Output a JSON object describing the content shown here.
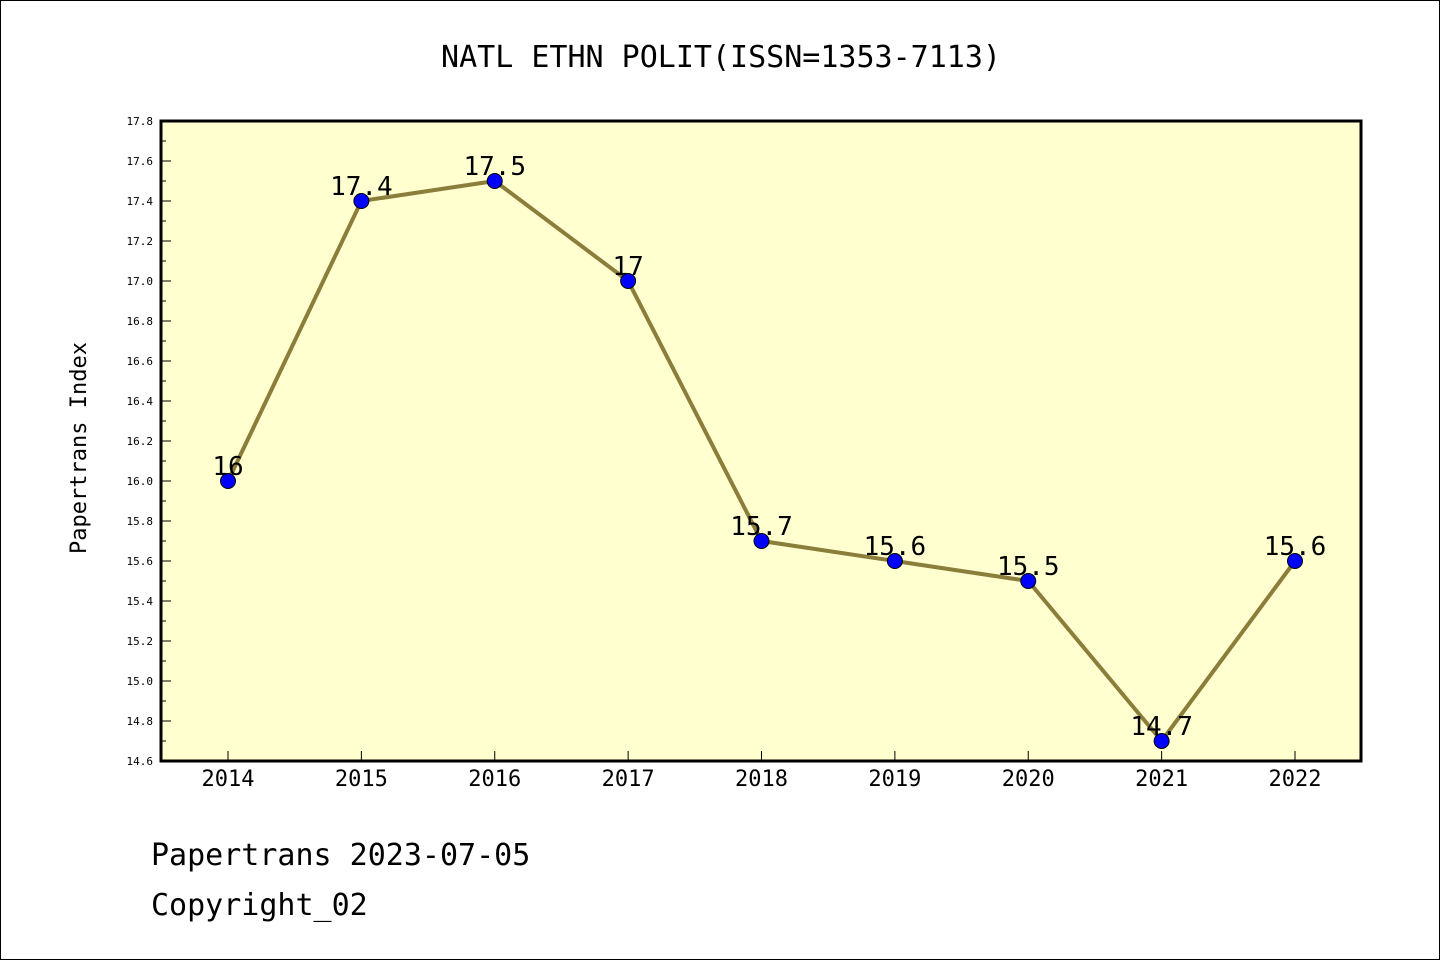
{
  "chart_data": {
    "type": "line",
    "title": "NATL ETHN POLIT(ISSN=1353-7113)",
    "xlabel": "",
    "ylabel": "Papertrans Index",
    "categories": [
      "2014",
      "2015",
      "2016",
      "2017",
      "2018",
      "2019",
      "2020",
      "2021",
      "2022"
    ],
    "series": [
      {
        "values": [
          16,
          17.4,
          17.5,
          17,
          15.7,
          15.6,
          15.5,
          14.7,
          15.6
        ],
        "data_labels": [
          "16",
          "17.4",
          "17.5",
          "17",
          "15.7",
          "15.6",
          "15.5",
          "14.7",
          "15.6"
        ]
      }
    ],
    "ylim": [
      14.6,
      17.8
    ],
    "yticks": [
      "14.6",
      "14.8",
      "15.0",
      "15.2",
      "15.4",
      "15.6",
      "15.8",
      "16.0",
      "16.2",
      "16.4",
      "16.6",
      "16.8",
      "17.0",
      "17.2",
      "17.4",
      "17.6",
      "17.8"
    ],
    "grid": false,
    "legend": "none"
  },
  "footer": {
    "line1": "Papertrans 2023-07-05",
    "line2": "Copyright_02"
  },
  "colors": {
    "plot_background": "#ffffd0",
    "line": "#8b7d3a",
    "marker": "#0000ff"
  }
}
